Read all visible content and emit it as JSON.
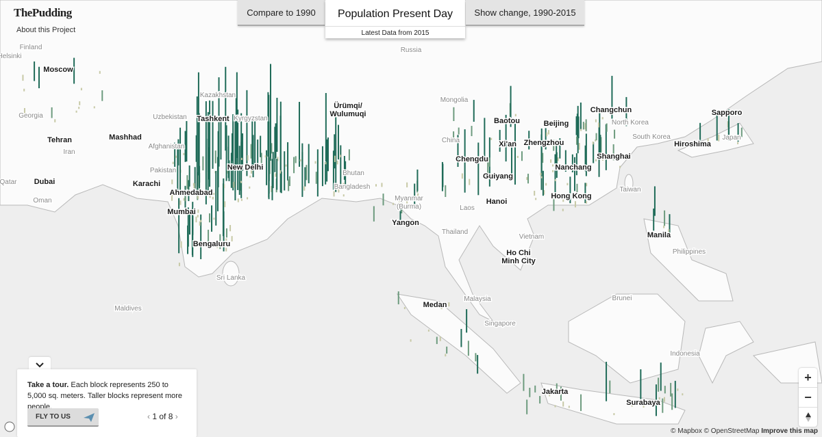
{
  "header": {
    "logo": "ThePudding",
    "about": "About this Project"
  },
  "tabs": {
    "left": "Compare to 1990",
    "center": "Population Present Day",
    "center_sub": "Latest Data from 2015",
    "right": "Show change, 1990-2015"
  },
  "map": {
    "major_cities": [
      [
        "Moscow"
      ],
      [
        "Tashkent"
      ],
      [
        "Ürümqi/",
        "Wulumuqi"
      ],
      [
        "Mashhad"
      ],
      [
        "Tehran"
      ],
      [
        "Dubai"
      ],
      [
        "Karachi"
      ],
      [
        "New Delhi"
      ],
      [
        "Ahmedabad"
      ],
      [
        "Mumbai"
      ],
      [
        "Bengaluru"
      ],
      [
        "Yangon"
      ],
      [
        "Chengdu"
      ],
      [
        "Xi'an"
      ],
      [
        "Zhengzhou"
      ],
      [
        "Beijing"
      ],
      [
        "Baotou"
      ],
      [
        "Changchun"
      ],
      [
        "Sapporo"
      ],
      [
        "Hiroshima"
      ],
      [
        "Shanghai"
      ],
      [
        "Nanchang"
      ],
      [
        "Guiyang"
      ],
      [
        "Hong Kong"
      ],
      [
        "Hanoi"
      ],
      [
        "Manila"
      ],
      [
        "Ho Chi",
        "Minh City"
      ],
      [
        "Medan"
      ],
      [
        "Jakarta"
      ],
      [
        "Surabaya"
      ]
    ],
    "minor_labels": [
      [
        "Helsinki"
      ],
      [
        "Finland"
      ],
      [
        "Russia"
      ],
      [
        "Kazakhstan"
      ],
      [
        "Georgia"
      ],
      [
        "Uzbekistan"
      ],
      [
        "Kyrgyzstan"
      ],
      [
        "Mongolia"
      ],
      [
        "Iran"
      ],
      [
        "Afghanistan"
      ],
      [
        "Pakistan"
      ],
      [
        "Qatar"
      ],
      [
        "Oman"
      ],
      [
        "Bhutan"
      ],
      [
        "Bangladesh"
      ],
      [
        "Myanmar",
        "(Burma)"
      ],
      [
        "China"
      ],
      [
        "North Korea"
      ],
      [
        "South Korea"
      ],
      [
        "Japan"
      ],
      [
        "Taiwan"
      ],
      [
        "Laos"
      ],
      [
        "Thailand"
      ],
      [
        "Vietnam"
      ],
      [
        "Philippines"
      ],
      [
        "Sri Lanka"
      ],
      [
        "Maldives"
      ],
      [
        "Malaysia"
      ],
      [
        "Singapore"
      ],
      [
        "Brunei"
      ],
      [
        "Indonesia"
      ]
    ]
  },
  "tour": {
    "lead": "Take a tour.",
    "text": "Each block represents 250 to 5,000 sq. meters. Taller blocks represent more people.",
    "button": "FLY TO US",
    "pager": "1 of 8"
  },
  "controls": {
    "zoom_in": "+",
    "zoom_out": "−"
  },
  "attribution": {
    "mapbox": "© Mapbox",
    "osm": "© OpenStreetMap",
    "improve": "Improve this map"
  }
}
